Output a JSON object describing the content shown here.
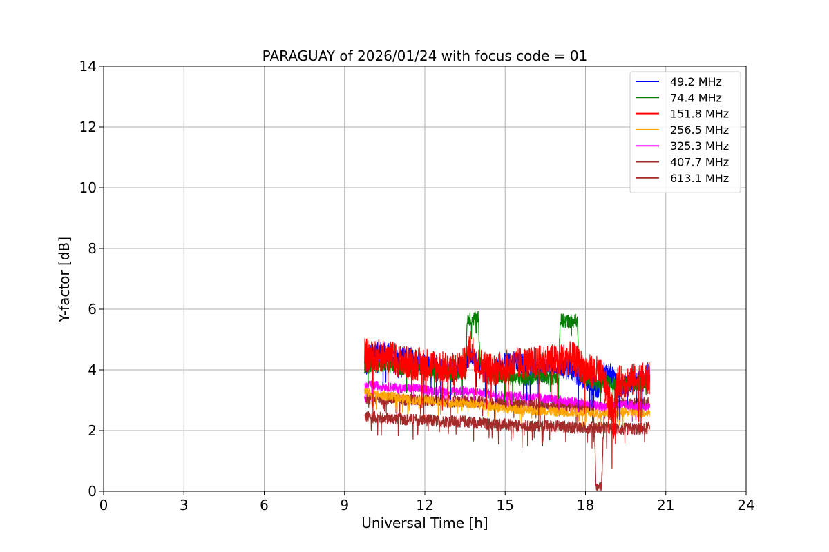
{
  "chart_data": {
    "type": "line",
    "title": "PARAGUAY of 2026/01/24 with focus code = 01",
    "xlabel": "Universal Time [h]",
    "ylabel": "Y-factor [dB]",
    "xlim": [
      0,
      24
    ],
    "ylim": [
      0,
      14
    ],
    "xticks": [
      0,
      3,
      6,
      9,
      12,
      15,
      18,
      21,
      24
    ],
    "yticks": [
      0,
      2,
      4,
      6,
      8,
      10,
      12,
      14
    ],
    "xtick_labels": [
      "0",
      "3",
      "6",
      "9",
      "12",
      "15",
      "18",
      "21",
      "24"
    ],
    "ytick_labels": [
      "0",
      "2",
      "4",
      "6",
      "8",
      "10",
      "12",
      "14"
    ],
    "grid": true,
    "legend_position": "top-right",
    "series": [
      {
        "name": " 49.2 MHz",
        "color": "#0000ff",
        "points": [
          [
            9.75,
            4.4
          ],
          [
            10,
            4.5
          ],
          [
            10.5,
            4.6
          ],
          [
            11,
            4.4
          ],
          [
            11.5,
            4.4
          ],
          [
            12,
            4.2
          ],
          [
            12.5,
            4.1
          ],
          [
            13,
            3.9
          ],
          [
            13.5,
            4.2
          ],
          [
            13.7,
            4.5
          ],
          [
            14,
            4.1
          ],
          [
            14.5,
            3.9
          ],
          [
            15,
            4.2
          ],
          [
            15.5,
            4.3
          ],
          [
            16,
            4.0
          ],
          [
            16.5,
            4.0
          ],
          [
            17,
            4.1
          ],
          [
            17.5,
            4.0
          ],
          [
            18,
            3.6
          ],
          [
            18.5,
            3.4
          ],
          [
            18.7,
            3.9
          ],
          [
            19,
            3.85
          ],
          [
            19.2,
            3.3
          ],
          [
            19.5,
            3.5
          ],
          [
            20,
            3.6
          ],
          [
            20.4,
            3.9
          ]
        ],
        "noise": 0.35
      },
      {
        "name": " 74.4 MHz",
        "color": "#008000",
        "points": [
          [
            9.75,
            4.1
          ],
          [
            10,
            4.15
          ],
          [
            10.5,
            4.2
          ],
          [
            11,
            4.1
          ],
          [
            11.5,
            4.0
          ],
          [
            12,
            4.0
          ],
          [
            12.5,
            3.95
          ],
          [
            13,
            3.9
          ],
          [
            13.5,
            3.95
          ],
          [
            13.6,
            5.7
          ],
          [
            14,
            5.7
          ],
          [
            14.05,
            4.3
          ],
          [
            14.5,
            3.8
          ],
          [
            15,
            3.75
          ],
          [
            15.5,
            3.7
          ],
          [
            16,
            3.75
          ],
          [
            16.5,
            3.75
          ],
          [
            17,
            3.75
          ],
          [
            17.05,
            5.6
          ],
          [
            17.7,
            5.6
          ],
          [
            17.75,
            3.9
          ],
          [
            18,
            3.7
          ],
          [
            18.5,
            3.5
          ],
          [
            18.7,
            3.6
          ],
          [
            19,
            3.5
          ],
          [
            19.5,
            3.5
          ],
          [
            20,
            3.55
          ],
          [
            20.4,
            3.6
          ]
        ],
        "noise": 0.25
      },
      {
        "name": "151.8 MHz",
        "color": "#ff0000",
        "points": [
          [
            9.75,
            4.5
          ],
          [
            10,
            4.4
          ],
          [
            10.5,
            4.5
          ],
          [
            11,
            4.3
          ],
          [
            11.5,
            4.2
          ],
          [
            12,
            4.2
          ],
          [
            12.5,
            4.1
          ],
          [
            13,
            4.0
          ],
          [
            13.5,
            4.2
          ],
          [
            13.7,
            4.8
          ],
          [
            14,
            4.2
          ],
          [
            14.5,
            4.0
          ],
          [
            15,
            4.1
          ],
          [
            15.5,
            4.2
          ],
          [
            16,
            4.2
          ],
          [
            16.5,
            4.3
          ],
          [
            17,
            4.3
          ],
          [
            17.5,
            4.4
          ],
          [
            18,
            4.0
          ],
          [
            18.5,
            3.9
          ],
          [
            18.7,
            3.6
          ],
          [
            19,
            2.6
          ],
          [
            19.2,
            3.6
          ],
          [
            19.5,
            3.6
          ],
          [
            20,
            3.7
          ],
          [
            20.4,
            3.7
          ]
        ],
        "noise": 0.55
      },
      {
        "name": "256.5 MHz",
        "color": "#ffa500",
        "points": [
          [
            9.75,
            3.3
          ],
          [
            10,
            3.2
          ],
          [
            10.5,
            3.15
          ],
          [
            11,
            3.1
          ],
          [
            11.5,
            3.0
          ],
          [
            12,
            3.0
          ],
          [
            12.5,
            2.95
          ],
          [
            13,
            2.9
          ],
          [
            13.5,
            2.9
          ],
          [
            14,
            2.85
          ],
          [
            14.5,
            2.8
          ],
          [
            15,
            2.7
          ],
          [
            15.5,
            2.7
          ],
          [
            16,
            2.65
          ],
          [
            16.5,
            2.65
          ],
          [
            17,
            2.6
          ],
          [
            17.5,
            2.6
          ],
          [
            18,
            2.6
          ],
          [
            18.5,
            2.55
          ],
          [
            18.7,
            2.6
          ],
          [
            19,
            2.6
          ],
          [
            19.5,
            2.6
          ],
          [
            20,
            2.55
          ],
          [
            20.4,
            2.6
          ]
        ],
        "noise": 0.15
      },
      {
        "name": "325.3 MHz",
        "color": "#ff00ff",
        "points": [
          [
            9.75,
            3.45
          ],
          [
            10,
            3.5
          ],
          [
            10.5,
            3.45
          ],
          [
            11,
            3.4
          ],
          [
            11.5,
            3.4
          ],
          [
            12,
            3.35
          ],
          [
            12.5,
            3.3
          ],
          [
            13,
            3.3
          ],
          [
            13.5,
            3.3
          ],
          [
            14,
            3.25
          ],
          [
            14.5,
            3.2
          ],
          [
            15,
            3.15
          ],
          [
            15.5,
            3.15
          ],
          [
            16,
            3.1
          ],
          [
            16.5,
            3.05
          ],
          [
            17,
            3.0
          ],
          [
            17.5,
            2.95
          ],
          [
            18,
            2.9
          ],
          [
            18.5,
            2.8
          ],
          [
            18.7,
            2.8
          ],
          [
            19,
            2.8
          ],
          [
            19.5,
            2.85
          ],
          [
            20,
            2.8
          ],
          [
            20.4,
            2.8
          ]
        ],
        "noise": 0.15
      },
      {
        "name": "407.7 MHz",
        "color": "#a52a2a",
        "points": [
          [
            9.75,
            3.1
          ],
          [
            10,
            3.05
          ],
          [
            10.5,
            3.05
          ],
          [
            11,
            3.05
          ],
          [
            11.5,
            3.0
          ],
          [
            12,
            3.0
          ],
          [
            12.5,
            3.0
          ],
          [
            13,
            2.95
          ],
          [
            13.5,
            2.95
          ],
          [
            14,
            2.95
          ],
          [
            14.5,
            2.9
          ],
          [
            15,
            2.9
          ],
          [
            15.5,
            2.85
          ],
          [
            16,
            2.85
          ],
          [
            16.5,
            2.85
          ],
          [
            17,
            2.85
          ],
          [
            17.5,
            2.8
          ],
          [
            18,
            2.8
          ],
          [
            18.3,
            2.8
          ],
          [
            18.4,
            0.1
          ],
          [
            18.6,
            0.1
          ],
          [
            18.7,
            2.85
          ],
          [
            19,
            2.85
          ],
          [
            19.5,
            2.9
          ],
          [
            20,
            2.9
          ],
          [
            20.4,
            2.9
          ]
        ],
        "noise": 0.2
      },
      {
        "name": "613.1 MHz",
        "color": "#a52a2a",
        "points": [
          [
            9.75,
            2.45
          ],
          [
            10,
            2.45
          ],
          [
            10.5,
            2.4
          ],
          [
            11,
            2.4
          ],
          [
            11.5,
            2.35
          ],
          [
            12,
            2.35
          ],
          [
            12.5,
            2.3
          ],
          [
            13,
            2.3
          ],
          [
            13.5,
            2.3
          ],
          [
            14,
            2.25
          ],
          [
            14.5,
            2.2
          ],
          [
            15,
            2.2
          ],
          [
            15.5,
            2.15
          ],
          [
            16,
            2.15
          ],
          [
            16.5,
            2.15
          ],
          [
            17,
            2.15
          ],
          [
            17.5,
            2.1
          ],
          [
            18,
            2.1
          ],
          [
            18.5,
            2.1
          ],
          [
            18.7,
            2.1
          ],
          [
            19,
            2.05
          ],
          [
            19.5,
            2.05
          ],
          [
            20,
            2.05
          ],
          [
            20.4,
            2.1
          ]
        ],
        "noise": 0.2
      }
    ]
  }
}
